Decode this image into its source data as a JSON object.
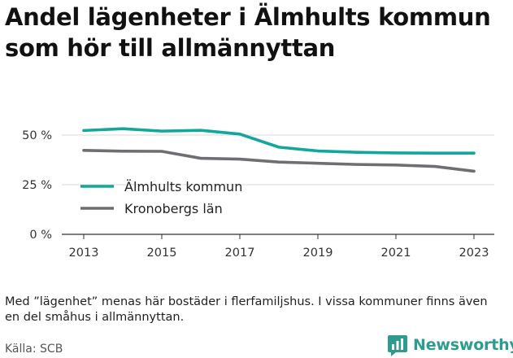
{
  "title": "Andel lägenheter i Älmhults kommun som hör till allmännyttan",
  "note": "Med ”lägenhet” menas här bostäder i flerfamiljshus. I vissa kommuner finns även en del småhus i allmännyttan.",
  "source": "Källa: SCB",
  "brand": {
    "name": "Newsworthy",
    "icon": "newsworthy-logo-icon",
    "color": "#2e9b8f"
  },
  "chart_data": {
    "type": "line",
    "x": [
      2013,
      2014,
      2015,
      2016,
      2017,
      2018,
      2019,
      2020,
      2021,
      2022,
      2023
    ],
    "xticks": [
      2013,
      2015,
      2017,
      2019,
      2021,
      2023
    ],
    "xtick_labels": [
      "2013",
      "2015",
      "2017",
      "2019",
      "2021",
      "2023"
    ],
    "yticks": [
      0,
      25,
      50
    ],
    "ytick_labels": [
      "0 %",
      "25 %",
      "50 %"
    ],
    "ylim": [
      0,
      60
    ],
    "grid": true,
    "legend_position": "center-left",
    "series": [
      {
        "name": "Älmhults kommun",
        "color": "#11a89b",
        "values": [
          52.3,
          53.2,
          52.0,
          52.4,
          50.5,
          43.9,
          42.0,
          41.3,
          41.0,
          40.9,
          40.9
        ]
      },
      {
        "name": "Kronobergs län",
        "color": "#6e6e73",
        "values": [
          42.3,
          41.9,
          41.8,
          38.3,
          37.9,
          36.4,
          35.8,
          35.2,
          34.9,
          34.2,
          31.8
        ]
      }
    ]
  }
}
